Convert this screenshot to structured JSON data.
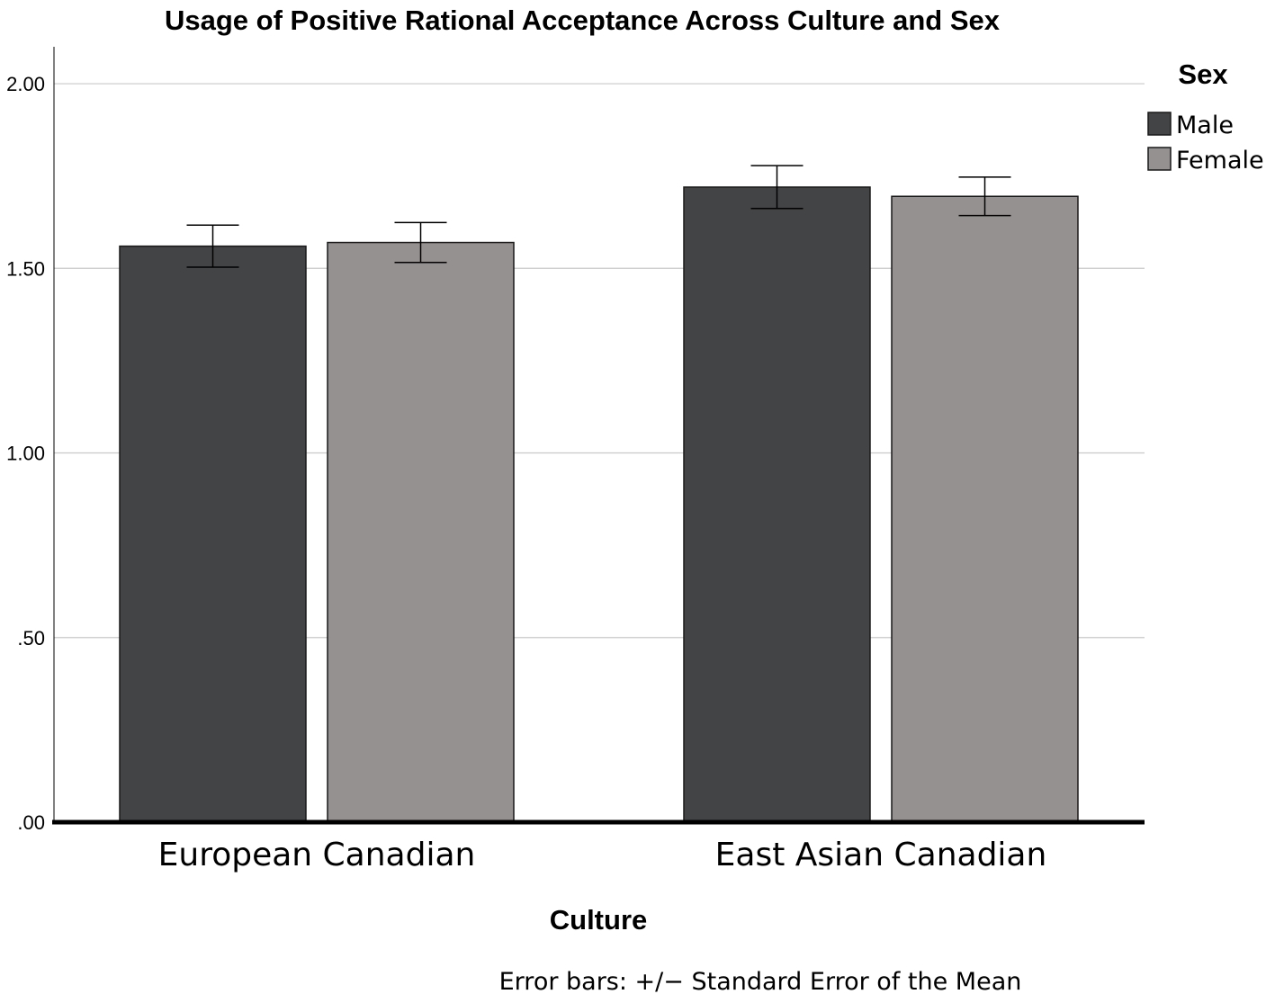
{
  "chart_data": {
    "type": "bar",
    "title": "Usage of Positive Rational Acceptance Across Culture and Sex",
    "xlabel": "Culture",
    "ylabel": "",
    "categories": [
      "European Canadian",
      "East Asian Canadian"
    ],
    "series": [
      {
        "name": "Male",
        "color": "#434446",
        "values": [
          1.56,
          1.72
        ],
        "errors": [
          0.057,
          0.058
        ]
      },
      {
        "name": "Female",
        "color": "#959190",
        "values": [
          1.57,
          1.695
        ],
        "errors": [
          0.054,
          0.052
        ]
      }
    ],
    "ylim": [
      0,
      2.1
    ],
    "y_ticks": [
      {
        "value": 0,
        "label": ".00"
      },
      {
        "value": 0.5,
        "label": ".50"
      },
      {
        "value": 1.0,
        "label": "1.00"
      },
      {
        "value": 1.5,
        "label": "1.50"
      },
      {
        "value": 2.0,
        "label": "2.00"
      }
    ],
    "grid": true,
    "legend_title": "Sex",
    "legend_position": "top-right",
    "note": "Error bars: +/− Standard Error of the Mean"
  }
}
